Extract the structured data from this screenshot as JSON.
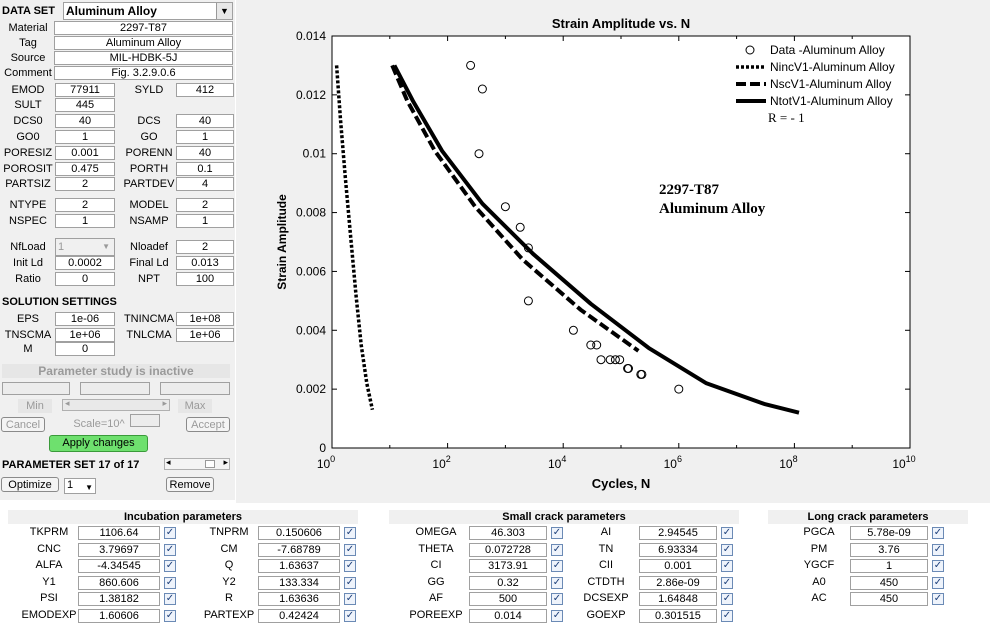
{
  "data_set": {
    "label": "DATA SET",
    "value": "Aluminum Alloy",
    "material_label": "Material",
    "material": "2297-T87",
    "tag_label": "Tag",
    "tag": "Aluminum Alloy",
    "source_label": "Source",
    "source": "MIL-HDBK-5J",
    "comment_label": "Comment",
    "comment": "Fig. 3.2.9.0.6"
  },
  "params": {
    "emod_label": "EMOD",
    "emod": "77911",
    "syld_label": "SYLD",
    "syld": "412",
    "sult_label": "SULT",
    "sult": "445",
    "dcs0_label": "DCS0",
    "dcs0": "40",
    "dcs_label": "DCS",
    "dcs": "40",
    "go0_label": "GO0",
    "go0": "1",
    "go_label": "GO",
    "go": "1",
    "poresiz_label": "PORESIZ",
    "poresiz": "0.001",
    "porenn_label": "PORENN",
    "porenn": "40",
    "porosit_label": "POROSIT",
    "porosit": "0.475",
    "porth_label": "PORTH",
    "porth": "0.1",
    "partsiz_label": "PARTSIZ",
    "partsiz": "2",
    "partdev_label": "PARTDEV",
    "partdev": "4",
    "ntype_label": "NTYPE",
    "ntype": "2",
    "model_label": "MODEL",
    "model": "2",
    "nspec_label": "NSPEC",
    "nspec": "1",
    "nsamp_label": "NSAMP",
    "nsamp": "1",
    "nfload_label": "NfLoad",
    "nfload": "1",
    "nloadef_label": "Nloadef",
    "nloadef": "2",
    "initld_label": "Init Ld",
    "initld": "0.0002",
    "finalld_label": "Final Ld",
    "finalld": "0.013",
    "ratio_label": "Ratio",
    "ratio": "0",
    "npt_label": "NPT",
    "npt": "100"
  },
  "solution": {
    "title": "SOLUTION SETTINGS",
    "eps_label": "EPS",
    "eps": "1e-06",
    "tnincma_label": "TNINCMA",
    "tnincma": "1e+08",
    "tnscma_label": "TNSCMA",
    "tnscma": "1e+06",
    "tnlcma_label": "TNLCMA",
    "tnlcma": "1e+06",
    "m_label": "M",
    "m": "0"
  },
  "param_study": {
    "status": "Parameter study is inactive",
    "min_label": "Min",
    "max_label": "Max",
    "cancel_label": "Cancel",
    "scale_label": "Scale=10^",
    "accept_label": "Accept",
    "apply_label": "Apply changes"
  },
  "param_set": {
    "label": "PARAMETER SET 17 of 17",
    "optimize_label": "Optimize",
    "select_value": "1",
    "remove_label": "Remove"
  },
  "incubation": {
    "title": "Incubation parameters",
    "rows": [
      {
        "l1": "TKPRM",
        "v1": "1106.64",
        "l2": "TNPRM",
        "v2": "0.150606"
      },
      {
        "l1": "CNC",
        "v1": "3.79697",
        "l2": "CM",
        "v2": "-7.68789"
      },
      {
        "l1": "ALFA",
        "v1": "-4.34545",
        "l2": "Q",
        "v2": "1.63637"
      },
      {
        "l1": "Y1",
        "v1": "860.606",
        "l2": "Y2",
        "v2": "133.334"
      },
      {
        "l1": "PSI",
        "v1": "1.38182",
        "l2": "R",
        "v2": "1.63636"
      },
      {
        "l1": "EMODEXP",
        "v1": "1.60606",
        "l2": "PARTEXP",
        "v2": "0.42424"
      }
    ]
  },
  "small_crack": {
    "title": "Small crack parameters",
    "rows": [
      {
        "l1": "OMEGA",
        "v1": "46.303",
        "l2": "AI",
        "v2": "2.94545"
      },
      {
        "l1": "THETA",
        "v1": "0.072728",
        "l2": "TN",
        "v2": "6.93334"
      },
      {
        "l1": "CI",
        "v1": "3173.91",
        "l2": "CII",
        "v2": "0.001"
      },
      {
        "l1": "GG",
        "v1": "0.32",
        "l2": "CTDTH",
        "v2": "2.86e-09"
      },
      {
        "l1": "AF",
        "v1": "500",
        "l2": "DCSEXP",
        "v2": "1.64848"
      },
      {
        "l1": "POREEXP",
        "v1": "0.014",
        "l2": "GOEXP",
        "v2": "0.301515"
      }
    ]
  },
  "long_crack": {
    "title": "Long crack parameters",
    "rows": [
      {
        "l1": "PGCA",
        "v1": "5.78e-09"
      },
      {
        "l1": "PM",
        "v1": "3.76"
      },
      {
        "l1": "YGCF",
        "v1": "1"
      },
      {
        "l1": "A0",
        "v1": "450"
      },
      {
        "l1": "AC",
        "v1": "450"
      }
    ]
  },
  "chart_data": {
    "type": "scatter",
    "title": "Strain Amplitude vs. N",
    "xlabel": "Cycles, N",
    "ylabel": "Strain Amplitude",
    "xscale": "log",
    "xlim": [
      1,
      10000000000
    ],
    "ylim": [
      0,
      0.014
    ],
    "xtick_exponents": [
      0,
      2,
      4,
      6,
      8,
      10
    ],
    "ytick_labels": [
      "0",
      "0.002",
      "0.004",
      "0.006",
      "0.008",
      "0.01",
      "0.012",
      "0.014"
    ],
    "annotation_lines": [
      "2297-T87",
      "Aluminum Alloy"
    ],
    "legend_position": "top-right",
    "legend": [
      "Data -Aluminum Alloy",
      "NincV1-Aluminum Alloy",
      "NscV1-Aluminum Alloy",
      "NtotV1-Aluminum Alloy"
    ],
    "legend_note": "R = - 1",
    "data_points": [
      [
        250,
        0.013
      ],
      [
        400,
        0.0122
      ],
      [
        350,
        0.01
      ],
      [
        1000,
        0.0082
      ],
      [
        1800,
        0.0075
      ],
      [
        2500,
        0.0068
      ],
      [
        2500,
        0.005
      ],
      [
        15000,
        0.004
      ],
      [
        30000,
        0.0035
      ],
      [
        38000,
        0.0035
      ],
      [
        45000,
        0.003
      ],
      [
        65000,
        0.003
      ],
      [
        80000,
        0.003
      ],
      [
        95000,
        0.003
      ],
      [
        130000,
        0.0027
      ],
      [
        135000,
        0.0027
      ],
      [
        220000,
        0.0025
      ],
      [
        230000,
        0.0025
      ],
      [
        1000000,
        0.002
      ]
    ],
    "series": [
      {
        "name": "NincV1-Aluminum Alloy",
        "style": "dotted",
        "points": [
          [
            1.2,
            0.013
          ],
          [
            1.4,
            0.0112
          ],
          [
            1.7,
            0.0092
          ],
          [
            2.1,
            0.0072
          ],
          [
            2.6,
            0.0052
          ],
          [
            3.2,
            0.0035
          ],
          [
            4.0,
            0.0022
          ],
          [
            5.0,
            0.0013
          ]
        ]
      },
      {
        "name": "NscV1-Aluminum Alloy",
        "style": "dashed",
        "points": [
          [
            11,
            0.013
          ],
          [
            20,
            0.0118
          ],
          [
            60,
            0.0101
          ],
          [
            300,
            0.0082
          ],
          [
            2000,
            0.0064
          ],
          [
            20000,
            0.0047
          ],
          [
            200000,
            0.0033
          ]
        ]
      },
      {
        "name": "NtotV1-Aluminum Alloy",
        "style": "solid",
        "points": [
          [
            12,
            0.013
          ],
          [
            25,
            0.0118
          ],
          [
            80,
            0.0101
          ],
          [
            400,
            0.0083
          ],
          [
            3000,
            0.0066
          ],
          [
            30000,
            0.0049
          ],
          [
            300000,
            0.0034
          ],
          [
            3000000,
            0.0022
          ],
          [
            30000000,
            0.0015
          ],
          [
            120000000,
            0.0012
          ]
        ]
      }
    ]
  }
}
